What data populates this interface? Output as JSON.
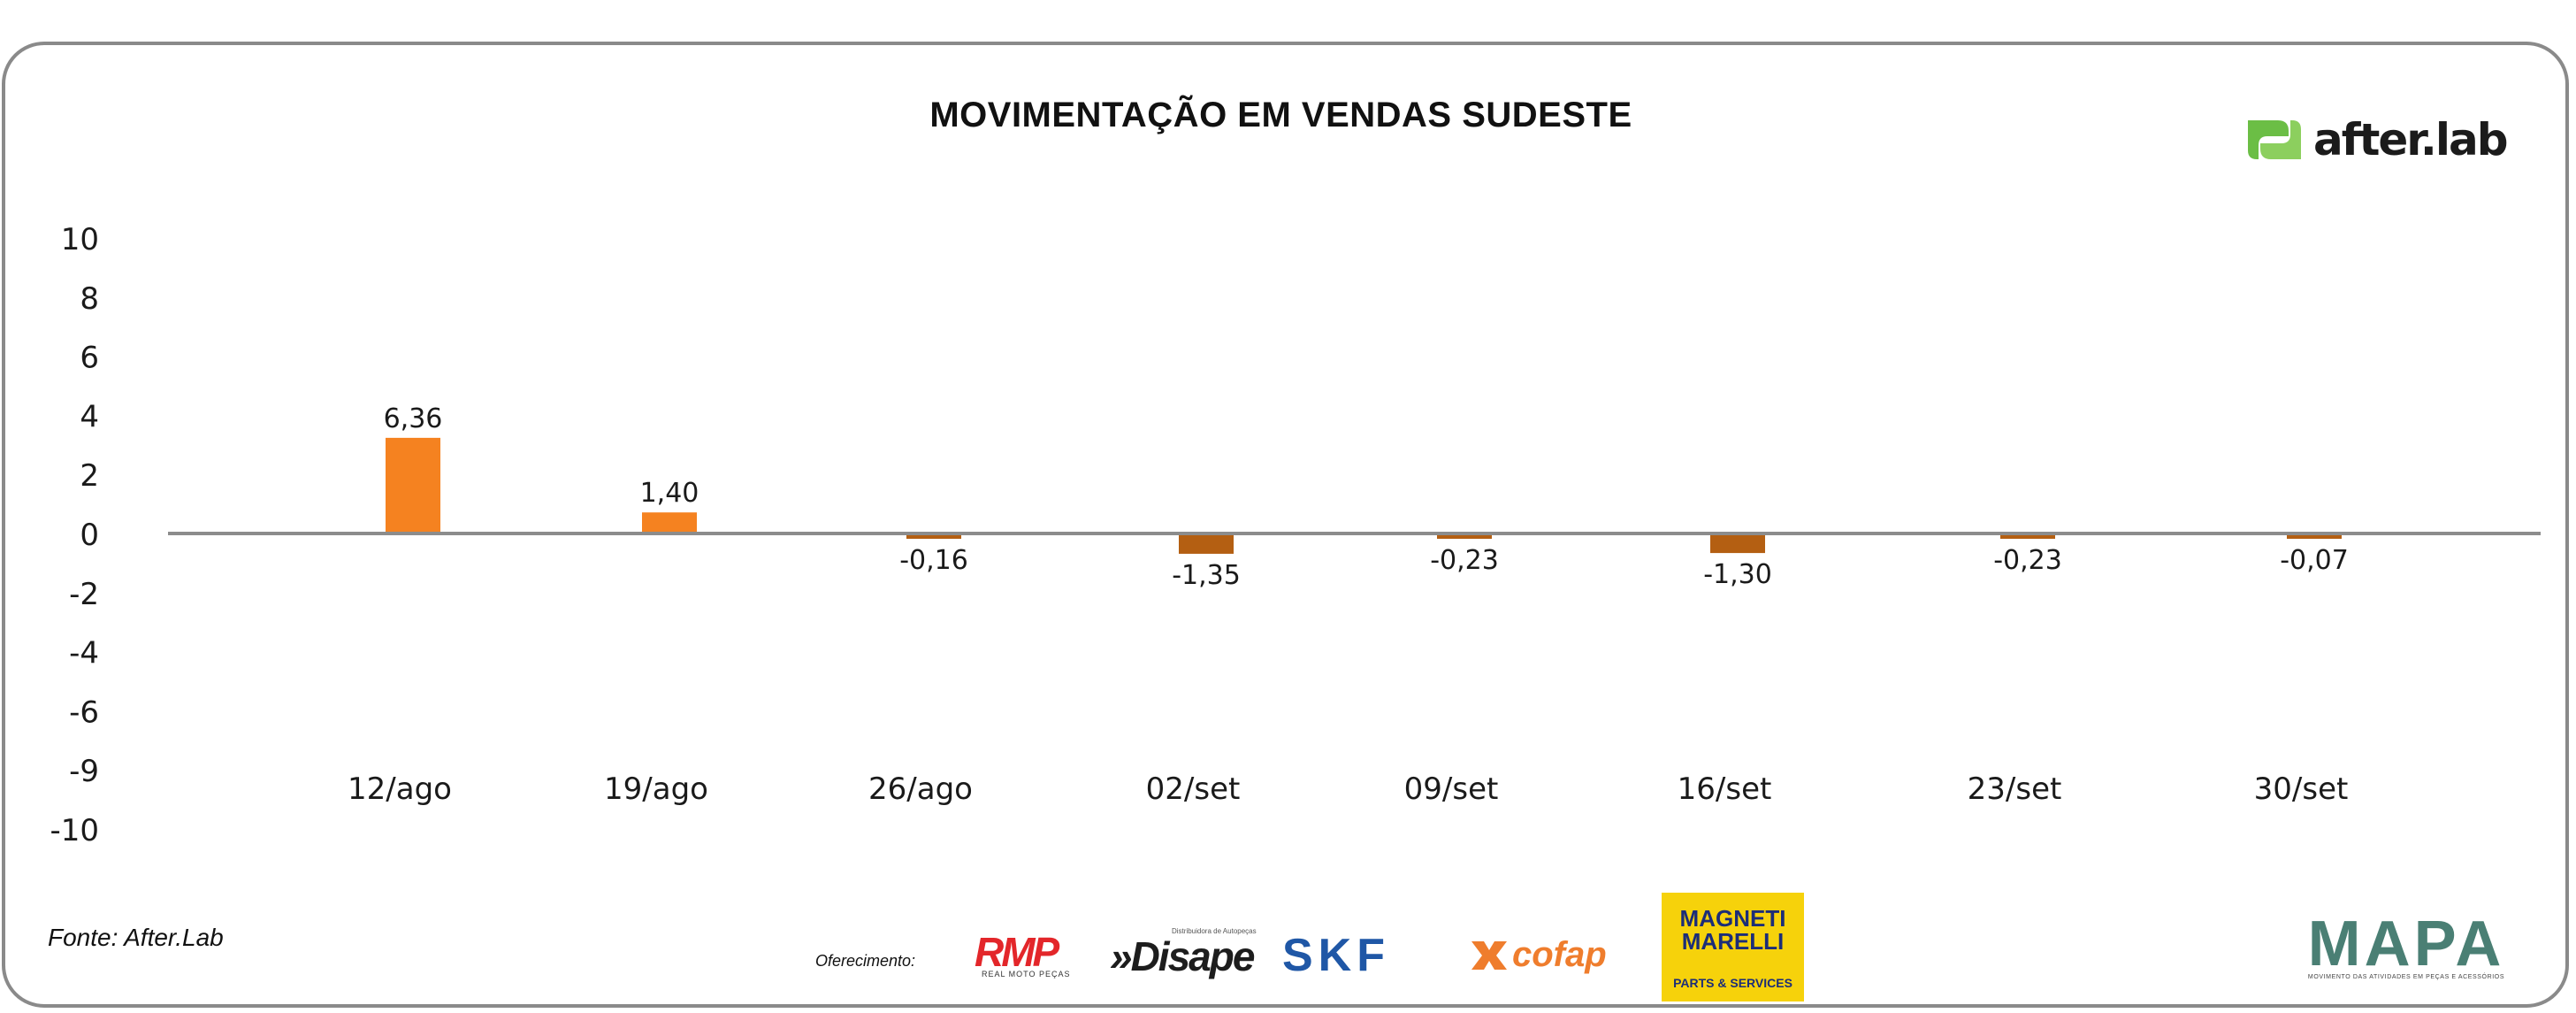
{
  "chart_data": {
    "type": "bar",
    "title": "MOVIMENTAÇÃO EM VENDAS SUDESTE",
    "categories": [
      "12/ago",
      "19/ago",
      "26/ago",
      "02/set",
      "09/set",
      "16/set",
      "23/set",
      "30/set"
    ],
    "values": [
      6.36,
      1.4,
      -0.16,
      -1.35,
      -0.23,
      -1.3,
      -0.23,
      -0.07
    ],
    "value_labels": [
      "6,36",
      "1,40",
      "-0,16",
      "-1,35",
      "-0,23",
      "-1,30",
      "-0,23",
      "-0,07"
    ],
    "y_ticks": [
      "10",
      "8",
      "6",
      "4",
      "2",
      "0",
      "-2",
      "-4",
      "-6",
      "-9",
      "-10"
    ],
    "xlabel": "",
    "ylabel": "",
    "ylim": [
      -10,
      10
    ],
    "grid": false,
    "legend": "none",
    "colors": {
      "positive": "#f58220",
      "negative": "#b45f12",
      "axis": "#8c8c8c"
    }
  },
  "brand": {
    "logo_text": "after.lab",
    "logo_color": "#6bbe45"
  },
  "footer": {
    "source": "Fonte: After.Lab",
    "sponsor_label": "Oferecimento:",
    "sponsors": {
      "rmp": "RMP",
      "rmp_sub": "REAL MOTO PEÇAS",
      "disape": "»Disape",
      "disape_sub": "Distribuidora de Autopeças",
      "skf": "SKF",
      "cofap": "cofap",
      "magneti": "MAGNETI MARELLI",
      "magneti_sub": "PARTS & SERVICES",
      "mapa": "MAPA",
      "mapa_sub": "MOVIMENTO DAS ATIVIDADES EM PEÇAS E ACESSÓRIOS"
    }
  }
}
